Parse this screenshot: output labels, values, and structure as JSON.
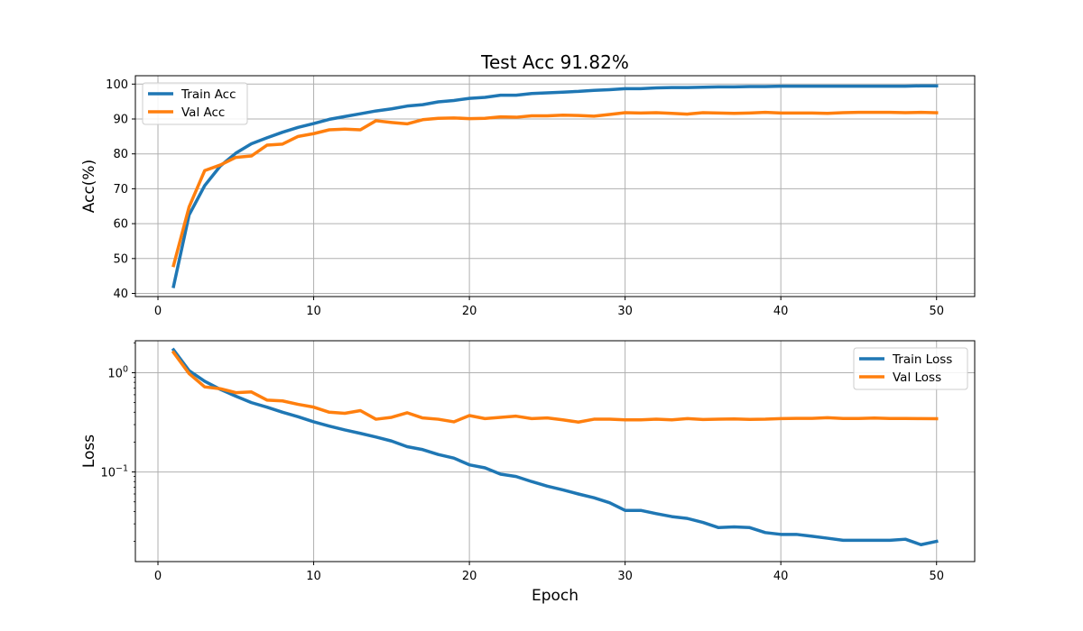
{
  "colors": {
    "train": "#1f77b4",
    "val": "#ff7f0e",
    "grid": "#b0b0b0",
    "axes": "#000000"
  },
  "chart_data": [
    {
      "type": "line",
      "title": "Test Acc 91.82%",
      "xlabel": "",
      "ylabel": "Acc(%)",
      "xlim": [
        -1.45,
        52.45
      ],
      "ylim": [
        39.1,
        102.4
      ],
      "yscale": "linear",
      "xticks": [
        0,
        10,
        20,
        30,
        40,
        50
      ],
      "xtick_labels": [
        "0",
        "10",
        "20",
        "30",
        "40",
        "50"
      ],
      "yticks": [
        40,
        50,
        60,
        70,
        80,
        90,
        100
      ],
      "ytick_labels": [
        "40",
        "50",
        "60",
        "70",
        "80",
        "90",
        "100"
      ],
      "grid": true,
      "legend": "top-left",
      "x": [
        1,
        2,
        3,
        4,
        5,
        6,
        7,
        8,
        9,
        10,
        11,
        12,
        13,
        14,
        15,
        16,
        17,
        18,
        19,
        20,
        21,
        22,
        23,
        24,
        25,
        26,
        27,
        28,
        29,
        30,
        31,
        32,
        33,
        34,
        35,
        36,
        37,
        38,
        39,
        40,
        41,
        42,
        43,
        44,
        45,
        46,
        47,
        48,
        49,
        50
      ],
      "series": [
        {
          "name": "Train Acc",
          "color": "#1f77b4",
          "values": [
            42.0,
            62.5,
            70.9,
            76.5,
            80.2,
            82.9,
            84.6,
            86.2,
            87.6,
            88.7,
            89.9,
            90.7,
            91.5,
            92.3,
            92.9,
            93.7,
            94.1,
            94.9,
            95.3,
            95.9,
            96.2,
            96.8,
            96.8,
            97.3,
            97.5,
            97.7,
            97.9,
            98.2,
            98.4,
            98.7,
            98.7,
            98.9,
            99.0,
            99.0,
            99.1,
            99.2,
            99.2,
            99.3,
            99.3,
            99.4,
            99.4,
            99.4,
            99.4,
            99.4,
            99.4,
            99.4,
            99.4,
            99.4,
            99.5,
            99.5
          ]
        },
        {
          "name": "Val Acc",
          "color": "#ff7f0e",
          "values": [
            48.0,
            64.8,
            75.2,
            76.8,
            79.0,
            79.4,
            82.5,
            82.8,
            85.0,
            85.8,
            86.9,
            87.1,
            86.9,
            89.5,
            89.0,
            88.6,
            89.8,
            90.2,
            90.3,
            90.1,
            90.2,
            90.6,
            90.5,
            90.9,
            90.9,
            91.1,
            91.0,
            90.8,
            91.3,
            91.8,
            91.7,
            91.8,
            91.6,
            91.4,
            91.8,
            91.7,
            91.6,
            91.7,
            91.9,
            91.7,
            91.7,
            91.7,
            91.6,
            91.8,
            91.9,
            91.9,
            91.9,
            91.8,
            91.9,
            91.8
          ]
        }
      ]
    },
    {
      "type": "line",
      "title": "",
      "xlabel": "Epoch",
      "ylabel": "Loss",
      "xlim": [
        -1.45,
        52.45
      ],
      "ylim": [
        0.0125,
        2.1
      ],
      "yscale": "log",
      "xticks": [
        0,
        10,
        20,
        30,
        40,
        50
      ],
      "xtick_labels": [
        "0",
        "10",
        "20",
        "30",
        "40",
        "50"
      ],
      "yticks": [
        1.0,
        0.1
      ],
      "ytick_labels": [
        {
          "base": "10",
          "exp": "0"
        },
        {
          "base": "10",
          "exp": "−1"
        }
      ],
      "grid": true,
      "legend": "top-right",
      "x": [
        1,
        2,
        3,
        4,
        5,
        6,
        7,
        8,
        9,
        10,
        11,
        12,
        13,
        14,
        15,
        16,
        17,
        18,
        19,
        20,
        21,
        22,
        23,
        24,
        25,
        26,
        27,
        28,
        29,
        30,
        31,
        32,
        33,
        34,
        35,
        36,
        37,
        38,
        39,
        40,
        41,
        42,
        43,
        44,
        45,
        46,
        47,
        48,
        49,
        50
      ],
      "series": [
        {
          "name": "Train Loss",
          "color": "#1f77b4",
          "values": [
            1.7,
            1.05,
            0.82,
            0.68,
            0.58,
            0.5,
            0.45,
            0.4,
            0.36,
            0.32,
            0.29,
            0.265,
            0.245,
            0.225,
            0.205,
            0.18,
            0.168,
            0.15,
            0.138,
            0.118,
            0.11,
            0.095,
            0.09,
            0.08,
            0.072,
            0.066,
            0.06,
            0.055,
            0.049,
            0.041,
            0.041,
            0.038,
            0.0355,
            0.034,
            0.031,
            0.0275,
            0.028,
            0.0275,
            0.0245,
            0.0235,
            0.0235,
            0.0225,
            0.0215,
            0.0205,
            0.0205,
            0.0205,
            0.0205,
            0.021,
            0.0185,
            0.02
          ]
        },
        {
          "name": "Val Loss",
          "color": "#ff7f0e",
          "values": [
            1.6,
            0.98,
            0.72,
            0.69,
            0.63,
            0.64,
            0.53,
            0.52,
            0.48,
            0.45,
            0.4,
            0.39,
            0.415,
            0.34,
            0.355,
            0.395,
            0.35,
            0.34,
            0.32,
            0.37,
            0.345,
            0.355,
            0.365,
            0.345,
            0.35,
            0.335,
            0.318,
            0.34,
            0.34,
            0.335,
            0.335,
            0.34,
            0.335,
            0.345,
            0.338,
            0.34,
            0.342,
            0.339,
            0.34,
            0.345,
            0.347,
            0.347,
            0.352,
            0.346,
            0.346,
            0.349,
            0.346,
            0.346,
            0.345,
            0.344
          ]
        }
      ]
    }
  ]
}
